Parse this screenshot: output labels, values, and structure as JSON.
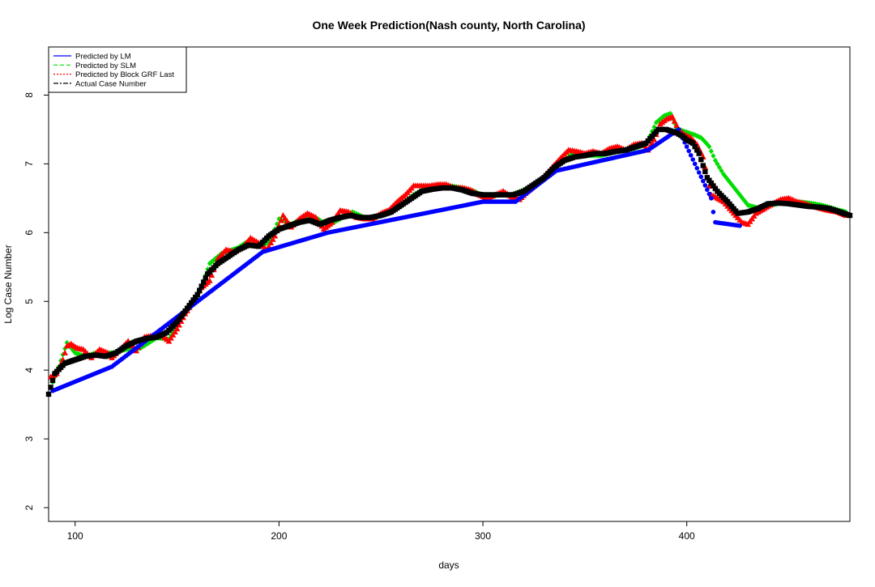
{
  "chart_data": {
    "type": "scatter",
    "title": "One Week Prediction(Nash county, North Carolina)",
    "xlabel": "days",
    "ylabel": "Log Case Number",
    "xlim": [
      87,
      480
    ],
    "ylim": [
      1.8,
      8.7
    ],
    "x_ticks": [
      100,
      200,
      300,
      400
    ],
    "y_ticks": [
      2,
      3,
      4,
      5,
      6,
      7,
      8
    ],
    "grid": false,
    "legend_position": "top-left",
    "legend": [
      {
        "label": "Predicted by LM",
        "color": "#0000ff",
        "line": "solid"
      },
      {
        "label": "Predicted by SLM",
        "color": "#00dd00",
        "line": "dashed"
      },
      {
        "label": "Predicted by Block GRF Last",
        "color": "#ff0000",
        "line": "dotted"
      },
      {
        "label": "Actual Case Number",
        "color": "#000000",
        "line": "dashdot"
      }
    ],
    "series": [
      {
        "name": "Actual Case Number",
        "color": "#000000",
        "marker": "square",
        "x": [
          87,
          90,
          95,
          100,
          105,
          110,
          115,
          120,
          125,
          130,
          135,
          140,
          145,
          150,
          155,
          160,
          165,
          170,
          175,
          180,
          185,
          190,
          195,
          200,
          205,
          210,
          215,
          220,
          225,
          230,
          235,
          240,
          245,
          250,
          255,
          260,
          265,
          270,
          275,
          280,
          285,
          290,
          295,
          300,
          305,
          310,
          315,
          320,
          325,
          330,
          335,
          340,
          345,
          350,
          355,
          360,
          365,
          370,
          375,
          380,
          383,
          386,
          390,
          395,
          398,
          400,
          403,
          406,
          410,
          415,
          420,
          425,
          430,
          435,
          440,
          445,
          450,
          455,
          460,
          465,
          470,
          475,
          480
        ],
        "y": [
          3.65,
          3.95,
          4.1,
          4.15,
          4.2,
          4.22,
          4.2,
          4.25,
          4.35,
          4.42,
          4.46,
          4.48,
          4.55,
          4.7,
          4.9,
          5.1,
          5.4,
          5.55,
          5.65,
          5.75,
          5.82,
          5.8,
          5.95,
          6.05,
          6.1,
          6.15,
          6.18,
          6.12,
          6.18,
          6.22,
          6.25,
          6.22,
          6.22,
          6.25,
          6.3,
          6.4,
          6.5,
          6.6,
          6.63,
          6.65,
          6.65,
          6.62,
          6.57,
          6.55,
          6.55,
          6.55,
          6.55,
          6.6,
          6.7,
          6.8,
          6.95,
          7.05,
          7.1,
          7.12,
          7.15,
          7.15,
          7.18,
          7.2,
          7.25,
          7.3,
          7.4,
          7.5,
          7.5,
          7.45,
          7.4,
          7.35,
          7.3,
          7.15,
          6.8,
          6.6,
          6.45,
          6.28,
          6.3,
          6.35,
          6.42,
          6.43,
          6.42,
          6.4,
          6.38,
          6.37,
          6.35,
          6.3,
          6.25
        ]
      },
      {
        "name": "Predicted by SLM",
        "color": "#00dd00",
        "marker": "diamond",
        "x": [
          88,
          92,
          96,
          100,
          105,
          110,
          118,
          125,
          132,
          140,
          146,
          152,
          160,
          166,
          172,
          180,
          186,
          192,
          196,
          200,
          206,
          212,
          218,
          224,
          230,
          236,
          242,
          248,
          254,
          260,
          266,
          272,
          278,
          284,
          290,
          296,
          302,
          308,
          314,
          320,
          328,
          336,
          344,
          350,
          358,
          366,
          374,
          380,
          385,
          389,
          392,
          395,
          398,
          401,
          404,
          407,
          409,
          411,
          414,
          418,
          422,
          426,
          430,
          436,
          442,
          448,
          454,
          460,
          466,
          472,
          478
        ],
        "y": [
          3.75,
          4.05,
          4.4,
          4.25,
          4.2,
          4.25,
          4.25,
          4.3,
          4.32,
          4.47,
          4.45,
          4.75,
          5.05,
          5.55,
          5.7,
          5.78,
          5.9,
          5.8,
          5.9,
          6.2,
          6.12,
          6.22,
          6.22,
          6.1,
          6.2,
          6.3,
          6.22,
          6.23,
          6.28,
          6.4,
          6.55,
          6.65,
          6.67,
          6.68,
          6.65,
          6.6,
          6.5,
          6.55,
          6.55,
          6.62,
          6.72,
          6.95,
          7.15,
          7.12,
          7.12,
          7.18,
          7.22,
          7.28,
          7.6,
          7.7,
          7.73,
          7.52,
          7.48,
          7.45,
          7.42,
          7.38,
          7.32,
          7.25,
          7.05,
          6.85,
          6.7,
          6.55,
          6.4,
          6.35,
          6.4,
          6.45,
          6.45,
          6.43,
          6.4,
          6.35,
          6.3
        ]
      },
      {
        "name": "Predicted by Block GRF Last",
        "color": "#ff0000",
        "marker": "triangle",
        "x": [
          88,
          91,
          94,
          96,
          98,
          101,
          104,
          108,
          112,
          116,
          118,
          122,
          126,
          130,
          134,
          138,
          142,
          146,
          150,
          154,
          158,
          162,
          166,
          170,
          174,
          178,
          182,
          186,
          190,
          194,
          198,
          202,
          206,
          210,
          214,
          218,
          222,
          226,
          230,
          234,
          238,
          242,
          246,
          250,
          254,
          258,
          262,
          266,
          270,
          274,
          278,
          282,
          286,
          290,
          294,
          298,
          302,
          306,
          310,
          314,
          318,
          322,
          326,
          330,
          334,
          338,
          342,
          346,
          350,
          354,
          358,
          362,
          366,
          370,
          374,
          378,
          381,
          384,
          387,
          390,
          393,
          396,
          399,
          402,
          405,
          408,
          410,
          412,
          415,
          418,
          421,
          424,
          427,
          430,
          434,
          438,
          442,
          446,
          450,
          454,
          458,
          462,
          466,
          470,
          474,
          478
        ],
        "y": [
          3.9,
          3.95,
          4.15,
          4.35,
          4.38,
          4.32,
          4.3,
          4.18,
          4.3,
          4.25,
          4.18,
          4.3,
          4.42,
          4.28,
          4.48,
          4.5,
          4.52,
          4.42,
          4.6,
          4.82,
          5.0,
          5.2,
          5.3,
          5.62,
          5.75,
          5.72,
          5.78,
          5.92,
          5.85,
          5.75,
          5.95,
          6.25,
          6.08,
          6.2,
          6.28,
          6.22,
          6.05,
          6.15,
          6.32,
          6.3,
          6.22,
          6.2,
          6.2,
          6.28,
          6.33,
          6.45,
          6.55,
          6.68,
          6.68,
          6.68,
          6.7,
          6.7,
          6.65,
          6.65,
          6.62,
          6.55,
          6.5,
          6.55,
          6.6,
          6.52,
          6.48,
          6.6,
          6.7,
          6.82,
          6.95,
          7.08,
          7.2,
          7.18,
          7.15,
          7.18,
          7.15,
          7.22,
          7.25,
          7.2,
          7.28,
          7.3,
          7.2,
          7.35,
          7.58,
          7.65,
          7.68,
          7.5,
          7.42,
          7.38,
          7.28,
          7.1,
          6.8,
          6.55,
          6.5,
          6.45,
          6.35,
          6.25,
          6.15,
          6.12,
          6.28,
          6.35,
          6.42,
          6.48,
          6.5,
          6.45,
          6.42,
          6.38,
          6.35,
          6.32,
          6.3,
          6.25
        ]
      },
      {
        "name": "Predicted by LM",
        "color": "#0000ff",
        "marker": "circle",
        "x": [
          89,
          118,
          192,
          224,
          300,
          316,
          336,
          381,
          396,
          412,
          413,
          414,
          426
        ],
        "y": [
          3.7,
          4.05,
          5.72,
          6.0,
          6.45,
          6.45,
          6.9,
          7.2,
          7.5,
          6.5,
          6.3,
          6.15,
          6.1
        ]
      }
    ]
  }
}
